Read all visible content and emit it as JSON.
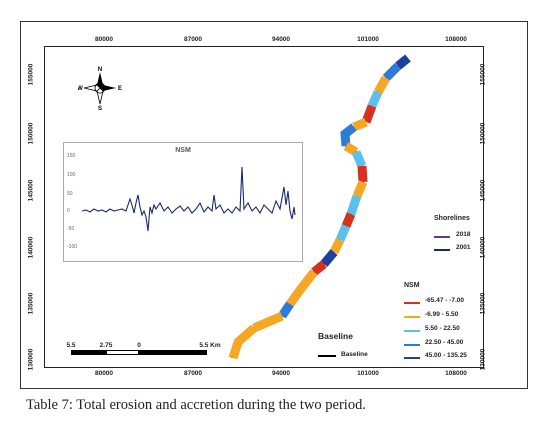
{
  "map": {
    "x_ticks": [
      "80000",
      "87000",
      "94000",
      "101000",
      "108000"
    ],
    "y_ticks": [
      "155000",
      "150000",
      "145000",
      "140000",
      "135000",
      "130000"
    ],
    "compass": {
      "n": "N",
      "s": "S",
      "e": "E",
      "w": "W"
    }
  },
  "inset": {
    "title": "NSM",
    "y_ticks": [
      "150",
      "100",
      "50",
      "0",
      "-50",
      "-100"
    ],
    "line_color": "#1a2a6c"
  },
  "shorelines": {
    "title": "Shorelines",
    "items": [
      {
        "label": "2018",
        "color": "#5b3a8c"
      },
      {
        "label": "2001",
        "color": "#1a2a6c"
      }
    ]
  },
  "nsm_legend": {
    "title": "NSM",
    "items": [
      {
        "label": "-65.47 - -7.00",
        "color": "#d7301f"
      },
      {
        "label": "-6.99 - 5.50",
        "color": "#f5a623"
      },
      {
        "label": "5.50 - 22.50",
        "color": "#5bc0eb"
      },
      {
        "label": "22.50 - 45.00",
        "color": "#2c7bd6"
      },
      {
        "label": "45.00 - 135.25",
        "color": "#1f3f9f"
      }
    ]
  },
  "scale_bar": {
    "labels": [
      "5.5",
      "2.75",
      "0",
      "5.5 Km"
    ]
  },
  "baseline": {
    "title": "Baseline",
    "label": "Baseline"
  },
  "caption": "Table 7: Total erosion and accretion during the two period."
}
